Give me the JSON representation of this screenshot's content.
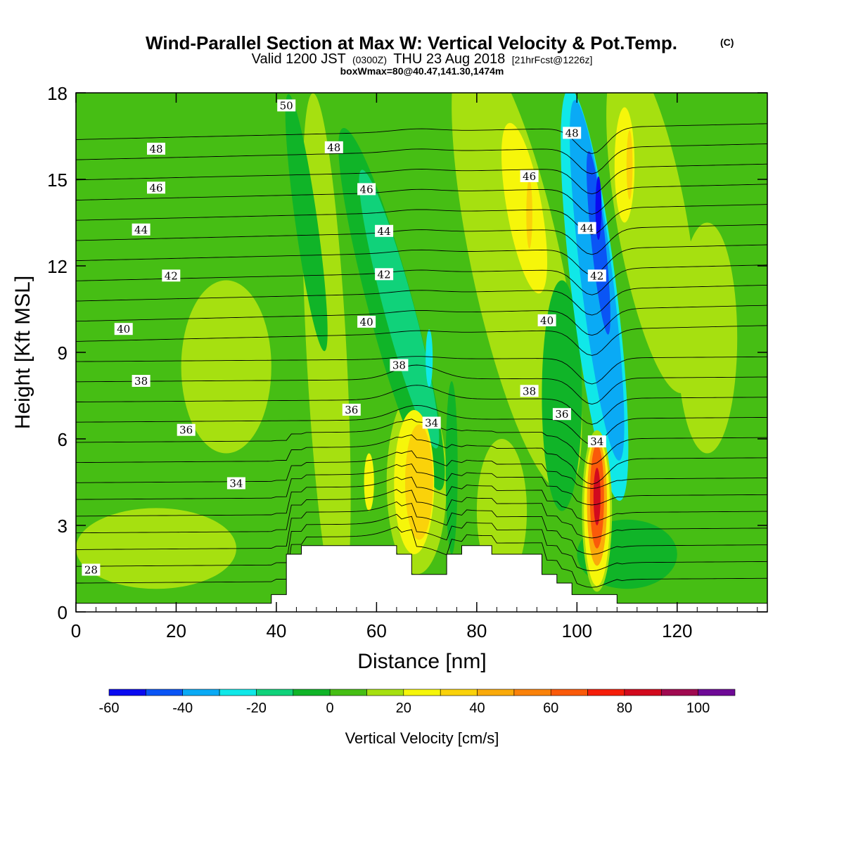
{
  "title": {
    "main": "Wind-Parallel Section at Max W: Vertical Velocity & Pot.Temp.",
    "copyright": "(C)",
    "valid_prefix": "Valid 1200 JST",
    "valid_utc": "(0300Z)",
    "valid_date": "THU 23 Aug 2018",
    "forecast": "[21hrFcst@1226z]",
    "box_info": "boxWmax=80@40.47,141.30,1474m"
  },
  "chart_data": {
    "type": "heatmap",
    "xlabel": "Distance [nm]",
    "ylabel": "Height [Kft MSL]",
    "xlim": [
      0,
      138
    ],
    "ylim": [
      0,
      18
    ],
    "x_ticks": [
      0,
      20,
      40,
      60,
      80,
      100,
      120
    ],
    "y_ticks": [
      0,
      3,
      6,
      9,
      12,
      15,
      18
    ],
    "colorbar": {
      "title": "Vertical Velocity [cm/s]",
      "min": -60,
      "max": 110,
      "step": 10,
      "tick_values": [
        -60,
        -40,
        -20,
        0,
        20,
        40,
        60,
        80,
        100
      ],
      "colors": [
        "#0a0af0",
        "#0a55f5",
        "#0aaaf5",
        "#10e8e8",
        "#10d27a",
        "#10b428",
        "#46be14",
        "#a6e010",
        "#f6f60a",
        "#fad20a",
        "#faaa0a",
        "#fa820a",
        "#fa5a0a",
        "#f51e0a",
        "#d20a1e",
        "#a00a50",
        "#6e0a96"
      ]
    },
    "background_value": 5,
    "velocity_features": [
      {
        "x": 104,
        "y": 4.0,
        "value": 80
      },
      {
        "x": 68,
        "y": 4.5,
        "value": 35
      },
      {
        "x": 104,
        "y": 13.5,
        "value": -45
      },
      {
        "x": 103.5,
        "y": 10.5,
        "value": -30
      },
      {
        "x": 91,
        "y": 14.5,
        "value": 25
      },
      {
        "x": 111,
        "y": 15.5,
        "value": 28
      },
      {
        "x": 64,
        "y": 10.5,
        "value": -15
      }
    ],
    "terrain": [
      [
        0,
        0.3
      ],
      [
        39,
        0.3
      ],
      [
        39,
        0.6
      ],
      [
        42,
        0.6
      ],
      [
        42,
        2.0
      ],
      [
        45,
        2.0
      ],
      [
        45,
        2.3
      ],
      [
        64,
        2.3
      ],
      [
        64,
        2.0
      ],
      [
        67,
        2.0
      ],
      [
        67,
        1.3
      ],
      [
        74,
        1.3
      ],
      [
        74,
        2.0
      ],
      [
        77,
        2.0
      ],
      [
        77,
        2.3
      ],
      [
        83,
        2.3
      ],
      [
        83,
        2.0
      ],
      [
        93,
        2.0
      ],
      [
        93,
        1.3
      ],
      [
        96,
        1.3
      ],
      [
        96,
        1.0
      ],
      [
        99,
        1.0
      ],
      [
        99,
        0.6
      ],
      [
        108,
        0.6
      ],
      [
        108,
        0.3
      ],
      [
        138,
        0.3
      ]
    ],
    "theta_contours": {
      "interval": 1,
      "levels": [
        28,
        29,
        30,
        31,
        32,
        33,
        34,
        35,
        36,
        37,
        38,
        39,
        40,
        41,
        42,
        43,
        44,
        45,
        46,
        47,
        48,
        49,
        50,
        51
      ],
      "labels": [
        {
          "text": "50",
          "x": 42,
          "y": 17.55
        },
        {
          "text": "48",
          "x": 16,
          "y": 16.05
        },
        {
          "text": "48",
          "x": 51.5,
          "y": 16.1
        },
        {
          "text": "46",
          "x": 16,
          "y": 14.7
        },
        {
          "text": "46",
          "x": 58,
          "y": 14.65
        },
        {
          "text": "44",
          "x": 13,
          "y": 13.25
        },
        {
          "text": "44",
          "x": 61.5,
          "y": 13.2
        },
        {
          "text": "42",
          "x": 19,
          "y": 11.65
        },
        {
          "text": "42",
          "x": 61.5,
          "y": 11.7
        },
        {
          "text": "40",
          "x": 9.5,
          "y": 9.8
        },
        {
          "text": "40",
          "x": 58,
          "y": 10.05
        },
        {
          "text": "38",
          "x": 13,
          "y": 8.0
        },
        {
          "text": "38",
          "x": 64.5,
          "y": 8.55
        },
        {
          "text": "36",
          "x": 22,
          "y": 6.3
        },
        {
          "text": "36",
          "x": 55,
          "y": 7.0
        },
        {
          "text": "34",
          "x": 32,
          "y": 4.45
        },
        {
          "text": "34",
          "x": 71,
          "y": 6.55
        },
        {
          "text": "28",
          "x": 3,
          "y": 1.45
        },
        {
          "text": "48",
          "x": 99,
          "y": 16.6
        },
        {
          "text": "46",
          "x": 90.5,
          "y": 15.1
        },
        {
          "text": "44",
          "x": 102,
          "y": 13.3
        },
        {
          "text": "42",
          "x": 104,
          "y": 11.65
        },
        {
          "text": "40",
          "x": 94,
          "y": 10.1
        },
        {
          "text": "38",
          "x": 90.5,
          "y": 7.65
        },
        {
          "text": "36",
          "x": 97,
          "y": 6.85
        },
        {
          "text": "34",
          "x": 104,
          "y": 5.9
        }
      ]
    }
  }
}
